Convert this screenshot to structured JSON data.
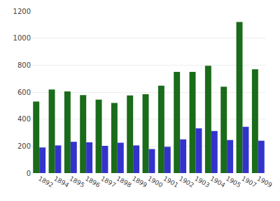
{
  "chart_data": {
    "type": "bar",
    "categories": [
      "1892",
      "1894",
      "1895",
      "1896",
      "1897",
      "1898",
      "1899",
      "1900",
      "1901",
      "1902",
      "1903",
      "1904",
      "1905",
      "1907",
      "1909"
    ],
    "series": [
      {
        "color": "#1a6b1a",
        "values": [
          530,
          620,
          605,
          578,
          545,
          520,
          575,
          585,
          648,
          750,
          750,
          795,
          640,
          1120,
          770
        ]
      },
      {
        "color": "#3333cc",
        "values": [
          190,
          205,
          232,
          228,
          202,
          225,
          205,
          178,
          195,
          250,
          332,
          312,
          245,
          343,
          240
        ]
      }
    ],
    "ylim": [
      0,
      1200
    ],
    "yticks": [
      0,
      200,
      400,
      600,
      800,
      1000,
      1200
    ],
    "grid": true
  }
}
